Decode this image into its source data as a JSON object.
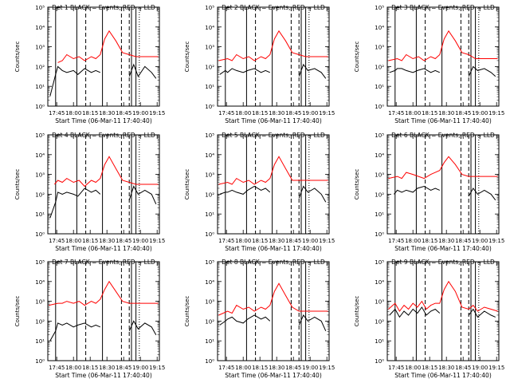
{
  "chart_data": {
    "type": "line",
    "layout": "3x3 grid",
    "scale": "log-y",
    "xlabel": "Start Time (06-Mar-11 17:40:40)",
    "ylabel": "Counts/sec",
    "xticks": [
      "17:45",
      "18:00",
      "18:15",
      "18:30",
      "18:45",
      "19:00",
      "19:15"
    ],
    "xlim_min": [
      -3,
      97
    ],
    "ylim_exp": [
      0,
      5
    ],
    "colors": {
      "events": "#000000",
      "lld": "#ff0000"
    },
    "panels": [
      {
        "title": "Det 1",
        "series": [
          {
            "name": "BLACK = Events",
            "x": [
              -1,
              4,
              6,
              10,
              14,
              20,
              24,
              30,
              36,
              40,
              44,
              48,
              52,
              58,
              64,
              70,
              74,
              78,
              84,
              90,
              94
            ],
            "y": [
              0.5,
              1.6,
              2.0,
              1.8,
              1.7,
              1.8,
              1.6,
              1.9,
              1.7,
              1.8,
              1.7,
              0,
              0,
              0,
              0,
              1.5,
              2.1,
              1.5,
              2.0,
              1.7,
              1.4
            ]
          },
          {
            "name": "RED = LLD",
            "x": [
              6,
              10,
              14,
              20,
              25,
              30,
              36,
              40,
              44,
              48,
              52,
              58,
              64,
              70,
              76,
              84,
              90,
              96
            ],
            "y": [
              2.2,
              2.3,
              2.6,
              2.4,
              2.5,
              2.3,
              2.5,
              2.4,
              2.6,
              3.4,
              3.8,
              3.3,
              2.7,
              2.6,
              2.5,
              2.5,
              2.5,
              2.5
            ]
          }
        ]
      },
      {
        "title": "Det 2",
        "series": [
          {
            "name": "BLACK = Events",
            "x": [
              -1,
              4,
              6,
              10,
              14,
              20,
              24,
              30,
              36,
              40,
              44,
              48,
              52,
              58,
              64,
              70,
              74,
              78,
              84,
              90,
              94
            ],
            "y": [
              1.6,
              1.8,
              1.7,
              1.9,
              1.8,
              1.7,
              1.8,
              1.9,
              1.7,
              1.8,
              1.7,
              0,
              0,
              0,
              0,
              1.5,
              2.1,
              1.8,
              1.9,
              1.7,
              1.4
            ]
          },
          {
            "name": "RED = LLD",
            "x": [
              -2,
              6,
              10,
              14,
              20,
              25,
              30,
              36,
              40,
              44,
              48,
              52,
              58,
              64,
              70,
              76,
              84,
              90,
              96
            ],
            "y": [
              2.3,
              2.4,
              2.3,
              2.6,
              2.4,
              2.5,
              2.3,
              2.5,
              2.4,
              2.6,
              3.4,
              3.8,
              3.3,
              2.7,
              2.6,
              2.5,
              2.5,
              2.5,
              2.5
            ]
          }
        ]
      },
      {
        "title": "Det 3",
        "series": [
          {
            "name": "BLACK = Events",
            "x": [
              -1,
              4,
              6,
              10,
              14,
              20,
              24,
              30,
              36,
              40,
              44,
              48,
              52,
              58,
              64,
              70,
              74,
              78,
              84,
              90,
              94
            ],
            "y": [
              1.7,
              1.8,
              1.9,
              1.9,
              1.8,
              1.7,
              1.8,
              1.9,
              1.7,
              1.8,
              1.7,
              0,
              0,
              0,
              0,
              1.5,
              2.0,
              1.8,
              1.9,
              1.7,
              1.5
            ]
          },
          {
            "name": "RED = LLD",
            "x": [
              -2,
              6,
              10,
              14,
              20,
              25,
              30,
              36,
              40,
              44,
              48,
              52,
              58,
              64,
              70,
              76,
              84,
              90,
              96
            ],
            "y": [
              2.3,
              2.4,
              2.3,
              2.6,
              2.4,
              2.5,
              2.3,
              2.5,
              2.4,
              2.6,
              3.4,
              3.8,
              3.3,
              2.7,
              2.6,
              2.4,
              2.4,
              2.4,
              2.4
            ]
          }
        ]
      },
      {
        "title": "Det 4",
        "series": [
          {
            "name": "BLACK = Events",
            "x": [
              -1,
              4,
              6,
              10,
              14,
              20,
              24,
              30,
              36,
              40,
              44,
              48,
              52,
              58,
              64,
              70,
              74,
              78,
              84,
              90,
              94
            ],
            "y": [
              0.8,
              1.6,
              2.1,
              2.0,
              2.1,
              2.0,
              1.9,
              2.3,
              2.1,
              2.2,
              2.0,
              0,
              0,
              0,
              0,
              1.7,
              2.4,
              2.0,
              2.2,
              2.0,
              1.5
            ]
          },
          {
            "name": "RED = LLD",
            "x": [
              3,
              6,
              10,
              14,
              20,
              25,
              30,
              36,
              40,
              44,
              48,
              52,
              58,
              64,
              70,
              76,
              84,
              90,
              96
            ],
            "y": [
              2.5,
              2.7,
              2.6,
              2.8,
              2.6,
              2.7,
              2.4,
              2.7,
              2.6,
              2.8,
              3.5,
              3.9,
              3.3,
              2.7,
              2.6,
              2.5,
              2.5,
              2.5,
              2.5
            ]
          }
        ]
      },
      {
        "title": "Det 5",
        "series": [
          {
            "name": "BLACK = Events",
            "x": [
              -1,
              4,
              6,
              10,
              14,
              20,
              24,
              30,
              36,
              40,
              44,
              48,
              52,
              58,
              64,
              70,
              74,
              78,
              84,
              90,
              94
            ],
            "y": [
              2.0,
              2.1,
              2.1,
              2.2,
              2.1,
              2.0,
              2.2,
              2.4,
              2.2,
              2.3,
              2.1,
              0,
              0,
              0,
              0,
              1.8,
              2.4,
              2.1,
              2.3,
              2.0,
              1.6
            ]
          },
          {
            "name": "RED = LLD",
            "x": [
              -2,
              6,
              10,
              14,
              20,
              25,
              30,
              36,
              40,
              44,
              48,
              52,
              58,
              64,
              70,
              76,
              84,
              90,
              96
            ],
            "y": [
              2.5,
              2.6,
              2.5,
              2.8,
              2.6,
              2.7,
              2.5,
              2.7,
              2.6,
              2.8,
              3.5,
              3.9,
              3.3,
              2.7,
              2.7,
              2.7,
              2.7,
              2.7,
              2.7
            ]
          }
        ]
      },
      {
        "title": "Det 6",
        "series": [
          {
            "name": "BLACK = Events",
            "x": [
              3,
              6,
              10,
              14,
              20,
              24,
              30,
              36,
              40,
              44,
              48,
              52,
              58,
              64,
              70,
              74,
              78,
              84,
              90,
              94
            ],
            "y": [
              2.0,
              2.2,
              2.1,
              2.2,
              2.1,
              2.3,
              2.4,
              2.2,
              2.3,
              2.2,
              0,
              0,
              0,
              0,
              1.9,
              2.3,
              2.0,
              2.2,
              2.0,
              1.7
            ]
          },
          {
            "name": "RED = LLD",
            "x": [
              -2,
              6,
              10,
              14,
              20,
              25,
              30,
              36,
              40,
              44,
              48,
              52,
              58,
              64,
              70,
              76,
              84,
              90,
              96
            ],
            "y": [
              2.8,
              2.9,
              2.8,
              3.1,
              3.0,
              2.9,
              2.8,
              3.0,
              3.1,
              3.2,
              3.6,
              3.9,
              3.5,
              3.0,
              2.9,
              2.9,
              2.9,
              2.9,
              2.9
            ]
          }
        ]
      },
      {
        "title": "Det 7",
        "series": [
          {
            "name": "BLACK = Events",
            "x": [
              -1,
              4,
              6,
              10,
              14,
              20,
              24,
              30,
              36,
              40,
              44,
              48,
              52,
              58,
              64,
              70,
              74,
              78,
              84,
              90,
              94
            ],
            "y": [
              1.0,
              1.5,
              1.9,
              1.8,
              1.9,
              1.7,
              1.8,
              1.9,
              1.7,
              1.8,
              1.7,
              0,
              0,
              0,
              0,
              1.5,
              2.0,
              1.6,
              1.9,
              1.7,
              1.3
            ]
          },
          {
            "name": "RED = LLD",
            "x": [
              -2,
              6,
              10,
              14,
              20,
              25,
              30,
              36,
              40,
              44,
              48,
              52,
              58,
              64,
              70,
              76,
              84,
              90,
              96
            ],
            "y": [
              2.8,
              2.9,
              2.9,
              3.0,
              2.9,
              3.0,
              2.8,
              3.0,
              2.9,
              3.1,
              3.6,
              4.0,
              3.5,
              3.0,
              2.9,
              2.9,
              2.9,
              2.9,
              2.9
            ]
          }
        ]
      },
      {
        "title": "Det 8",
        "series": [
          {
            "name": "BLACK = Events",
            "x": [
              -1,
              4,
              6,
              10,
              14,
              20,
              24,
              30,
              36,
              40,
              44,
              48,
              52,
              58,
              64,
              70,
              74,
              78,
              84,
              90,
              94
            ],
            "y": [
              1.8,
              2.0,
              2.1,
              2.2,
              2.0,
              1.9,
              2.1,
              2.3,
              2.1,
              2.2,
              2.0,
              0,
              0,
              0,
              0,
              1.8,
              2.3,
              2.0,
              2.2,
              2.0,
              1.5
            ]
          },
          {
            "name": "RED = LLD",
            "x": [
              -2,
              6,
              10,
              14,
              20,
              25,
              30,
              36,
              40,
              44,
              48,
              52,
              58,
              64,
              70,
              76,
              84,
              90,
              96
            ],
            "y": [
              2.3,
              2.5,
              2.4,
              2.8,
              2.6,
              2.7,
              2.5,
              2.7,
              2.6,
              2.8,
              3.5,
              3.9,
              3.3,
              2.7,
              2.5,
              2.5,
              2.5,
              2.5,
              2.5
            ]
          }
        ]
      },
      {
        "title": "Det 9",
        "series": [
          {
            "name": "BLACK = Events",
            "x": [
              -1,
              4,
              8,
              12,
              16,
              20,
              24,
              28,
              32,
              36,
              40,
              44,
              48,
              52,
              58,
              64,
              70,
              74,
              78,
              84,
              90,
              94
            ],
            "y": [
              2.3,
              2.6,
              2.2,
              2.5,
              2.3,
              2.6,
              2.4,
              2.7,
              2.3,
              2.5,
              2.6,
              2.4,
              0,
              0,
              0,
              0,
              2.3,
              2.6,
              2.2,
              2.5,
              2.3,
              2.2
            ]
          },
          {
            "name": "RED = LLD",
            "x": [
              -2,
              4,
              8,
              12,
              16,
              20,
              24,
              28,
              32,
              36,
              40,
              44,
              48,
              52,
              58,
              64,
              70,
              74,
              78,
              84,
              90,
              96
            ],
            "y": [
              2.6,
              2.9,
              2.5,
              2.8,
              2.6,
              2.9,
              2.7,
              3.0,
              2.6,
              2.8,
              2.9,
              2.9,
              3.6,
              4.0,
              3.5,
              2.7,
              2.6,
              2.8,
              2.5,
              2.7,
              2.6,
              2.5
            ]
          }
        ]
      }
    ],
    "solid_lines_min": [
      4,
      23,
      46,
      72,
      76
    ],
    "dashed_lines_min": [
      31,
      63,
      70
    ],
    "dotted_lines_min": [
      79
    ]
  }
}
